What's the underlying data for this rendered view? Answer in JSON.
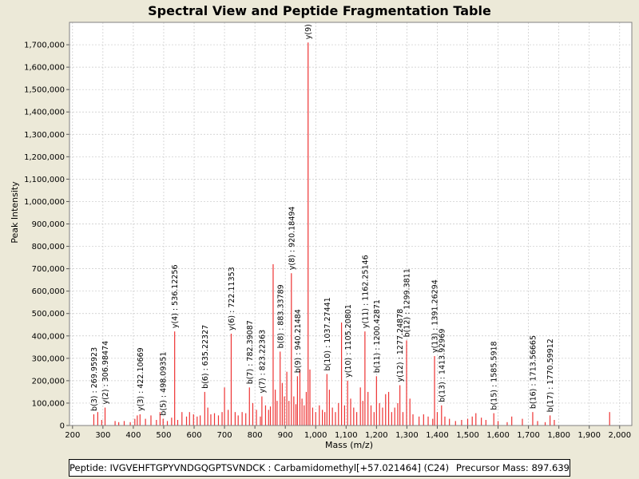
{
  "chart_data": {
    "type": "bar",
    "title": "Spectral View and Peptide Fragmentation Table",
    "xlabel": "Mass (m/z)",
    "ylabel": "Peak Intensity",
    "xlim": [
      190,
      2040
    ],
    "ylim": [
      0,
      1800000
    ],
    "xticks": [
      200,
      300,
      400,
      500,
      600,
      700,
      800,
      900,
      1000,
      1100,
      1200,
      1300,
      1400,
      1500,
      1600,
      1700,
      1800,
      1900,
      2000
    ],
    "xtick_labels": [
      "200",
      "300",
      "400",
      "500",
      "600",
      "700",
      "800",
      "900",
      "1,000",
      "1,100",
      "1,200",
      "1,300",
      "1,400",
      "1,500",
      "1,600",
      "1,700",
      "1,800",
      "1,900",
      "2,000"
    ],
    "yticks": [
      0,
      100000,
      200000,
      300000,
      400000,
      500000,
      600000,
      700000,
      800000,
      900000,
      1000000,
      1100000,
      1200000,
      1300000,
      1400000,
      1500000,
      1600000,
      1700000
    ],
    "ytick_labels": [
      "0",
      "100,000",
      "200,000",
      "300,000",
      "400,000",
      "500,000",
      "600,000",
      "700,000",
      "800,000",
      "900,000",
      "1,000,000",
      "1,100,000",
      "1,200,000",
      "1,300,000",
      "1,400,000",
      "1,500,000",
      "1,600,000",
      "1,700,000"
    ],
    "grid": true,
    "peaks": [
      [
        270,
        50000
      ],
      [
        283,
        60000
      ],
      [
        296,
        25000
      ],
      [
        307,
        80000
      ],
      [
        340,
        20000
      ],
      [
        352,
        15000
      ],
      [
        370,
        20000
      ],
      [
        390,
        15000
      ],
      [
        405,
        30000
      ],
      [
        413,
        45000
      ],
      [
        422,
        50000
      ],
      [
        440,
        30000
      ],
      [
        458,
        45000
      ],
      [
        476,
        25000
      ],
      [
        488,
        60000
      ],
      [
        498,
        30000
      ],
      [
        512,
        20000
      ],
      [
        526,
        35000
      ],
      [
        536,
        420000
      ],
      [
        546,
        25000
      ],
      [
        560,
        60000
      ],
      [
        575,
        40000
      ],
      [
        585,
        60000
      ],
      [
        598,
        50000
      ],
      [
        610,
        40000
      ],
      [
        620,
        45000
      ],
      [
        635,
        150000
      ],
      [
        645,
        80000
      ],
      [
        655,
        50000
      ],
      [
        667,
        55000
      ],
      [
        680,
        45000
      ],
      [
        692,
        60000
      ],
      [
        700,
        170000
      ],
      [
        712,
        70000
      ],
      [
        722,
        410000
      ],
      [
        735,
        60000
      ],
      [
        745,
        45000
      ],
      [
        758,
        60000
      ],
      [
        770,
        55000
      ],
      [
        782,
        170000
      ],
      [
        793,
        100000
      ],
      [
        805,
        70000
      ],
      [
        818,
        40000
      ],
      [
        823,
        130000
      ],
      [
        835,
        90000
      ],
      [
        845,
        70000
      ],
      [
        851,
        85000
      ],
      [
        860,
        720000
      ],
      [
        867,
        160000
      ],
      [
        873,
        110000
      ],
      [
        883,
        330000
      ],
      [
        890,
        190000
      ],
      [
        897,
        130000
      ],
      [
        905,
        240000
      ],
      [
        912,
        110000
      ],
      [
        920,
        680000
      ],
      [
        928,
        130000
      ],
      [
        935,
        95000
      ],
      [
        940,
        220000
      ],
      [
        948,
        250000
      ],
      [
        955,
        120000
      ],
      [
        962,
        90000
      ],
      [
        969,
        150000
      ],
      [
        975,
        1710000
      ],
      [
        981,
        250000
      ],
      [
        990,
        80000
      ],
      [
        1000,
        60000
      ],
      [
        1012,
        90000
      ],
      [
        1022,
        70000
      ],
      [
        1030,
        60000
      ],
      [
        1037,
        230000
      ],
      [
        1045,
        160000
      ],
      [
        1055,
        80000
      ],
      [
        1065,
        60000
      ],
      [
        1075,
        100000
      ],
      [
        1085,
        460000
      ],
      [
        1095,
        90000
      ],
      [
        1105,
        200000
      ],
      [
        1115,
        120000
      ],
      [
        1125,
        80000
      ],
      [
        1135,
        60000
      ],
      [
        1147,
        170000
      ],
      [
        1155,
        110000
      ],
      [
        1162,
        420000
      ],
      [
        1172,
        150000
      ],
      [
        1182,
        90000
      ],
      [
        1192,
        60000
      ],
      [
        1200,
        220000
      ],
      [
        1210,
        100000
      ],
      [
        1220,
        80000
      ],
      [
        1230,
        140000
      ],
      [
        1240,
        150000
      ],
      [
        1250,
        60000
      ],
      [
        1260,
        80000
      ],
      [
        1270,
        100000
      ],
      [
        1277,
        180000
      ],
      [
        1287,
        60000
      ],
      [
        1299,
        380000
      ],
      [
        1310,
        120000
      ],
      [
        1320,
        50000
      ],
      [
        1340,
        40000
      ],
      [
        1355,
        50000
      ],
      [
        1370,
        40000
      ],
      [
        1385,
        30000
      ],
      [
        1391,
        310000
      ],
      [
        1400,
        60000
      ],
      [
        1414,
        90000
      ],
      [
        1425,
        40000
      ],
      [
        1440,
        30000
      ],
      [
        1460,
        20000
      ],
      [
        1480,
        25000
      ],
      [
        1500,
        30000
      ],
      [
        1515,
        40000
      ],
      [
        1527,
        55000
      ],
      [
        1545,
        35000
      ],
      [
        1560,
        25000
      ],
      [
        1586,
        55000
      ],
      [
        1600,
        20000
      ],
      [
        1630,
        15000
      ],
      [
        1645,
        40000
      ],
      [
        1680,
        30000
      ],
      [
        1714,
        60000
      ],
      [
        1730,
        20000
      ],
      [
        1755,
        15000
      ],
      [
        1771,
        45000
      ],
      [
        1785,
        25000
      ],
      [
        1967,
        60000
      ]
    ],
    "annotations": [
      {
        "mass": 269.95923,
        "intensity": 50000,
        "label": "b(3) : 269.95923"
      },
      {
        "mass": 306.98474,
        "intensity": 80000,
        "label": "y(2) : 306.98474"
      },
      {
        "mass": 422.10669,
        "intensity": 50000,
        "label": "y(3) : 422.10669"
      },
      {
        "mass": 498.09351,
        "intensity": 30000,
        "label": "b(5) : 498.09351"
      },
      {
        "mass": 536.12256,
        "intensity": 420000,
        "label": "y(4) : 536.12256"
      },
      {
        "mass": 635.22327,
        "intensity": 150000,
        "label": "b(6) : 635.22327"
      },
      {
        "mass": 722.11353,
        "intensity": 410000,
        "label": "y(6) : 722.11353"
      },
      {
        "mass": 782.39087,
        "intensity": 170000,
        "label": "b(7) : 782.39087"
      },
      {
        "mass": 823.22363,
        "intensity": 130000,
        "label": "y(7) : 823.22363"
      },
      {
        "mass": 883.33789,
        "intensity": 330000,
        "label": "b(8) : 883.33789"
      },
      {
        "mass": 920.18494,
        "intensity": 680000,
        "label": "y(8) : 920.18494"
      },
      {
        "mass": 940.21484,
        "intensity": 220000,
        "label": "b(9) : 940.21484"
      },
      {
        "mass": 975.0,
        "intensity": 1710000,
        "label": "y(9)"
      },
      {
        "mass": 1037.27441,
        "intensity": 230000,
        "label": "b(10) : 1037.27441"
      },
      {
        "mass": 1105.20801,
        "intensity": 200000,
        "label": "y(10) : 1105.20801"
      },
      {
        "mass": 1162.25146,
        "intensity": 420000,
        "label": "y(11) : 1162.25146"
      },
      {
        "mass": 1200.42871,
        "intensity": 220000,
        "label": "b(11) : 1200.42871"
      },
      {
        "mass": 1277.24878,
        "intensity": 180000,
        "label": "y(12) : 1277.24878"
      },
      {
        "mass": 1299.3811,
        "intensity": 380000,
        "label": "b(12) : 1299.3811"
      },
      {
        "mass": 1391.26294,
        "intensity": 310000,
        "label": "y(13) : 1391.26294"
      },
      {
        "mass": 1413.92969,
        "intensity": 90000,
        "label": "b(13) : 1413.92969"
      },
      {
        "mass": 1585.5918,
        "intensity": 55000,
        "label": "b(15) : 1585.5918"
      },
      {
        "mass": 1713.56665,
        "intensity": 60000,
        "label": "b(16) : 1713.56665"
      },
      {
        "mass": 1770.59912,
        "intensity": 45000,
        "label": "b(17) : 1770.59912"
      }
    ],
    "colors": {
      "peak": "#ee3333",
      "grid": "#c8c8c8",
      "background": "#ffffff",
      "frame": "#ece9d8"
    }
  },
  "legend": {
    "peptide": "Peptide: IVGVEHFTGPYVNDGQGPTSVNDCK : Carbamidomethyl[+57.021464] (C24)",
    "precursor": "Precursor Mass: 897.639"
  }
}
